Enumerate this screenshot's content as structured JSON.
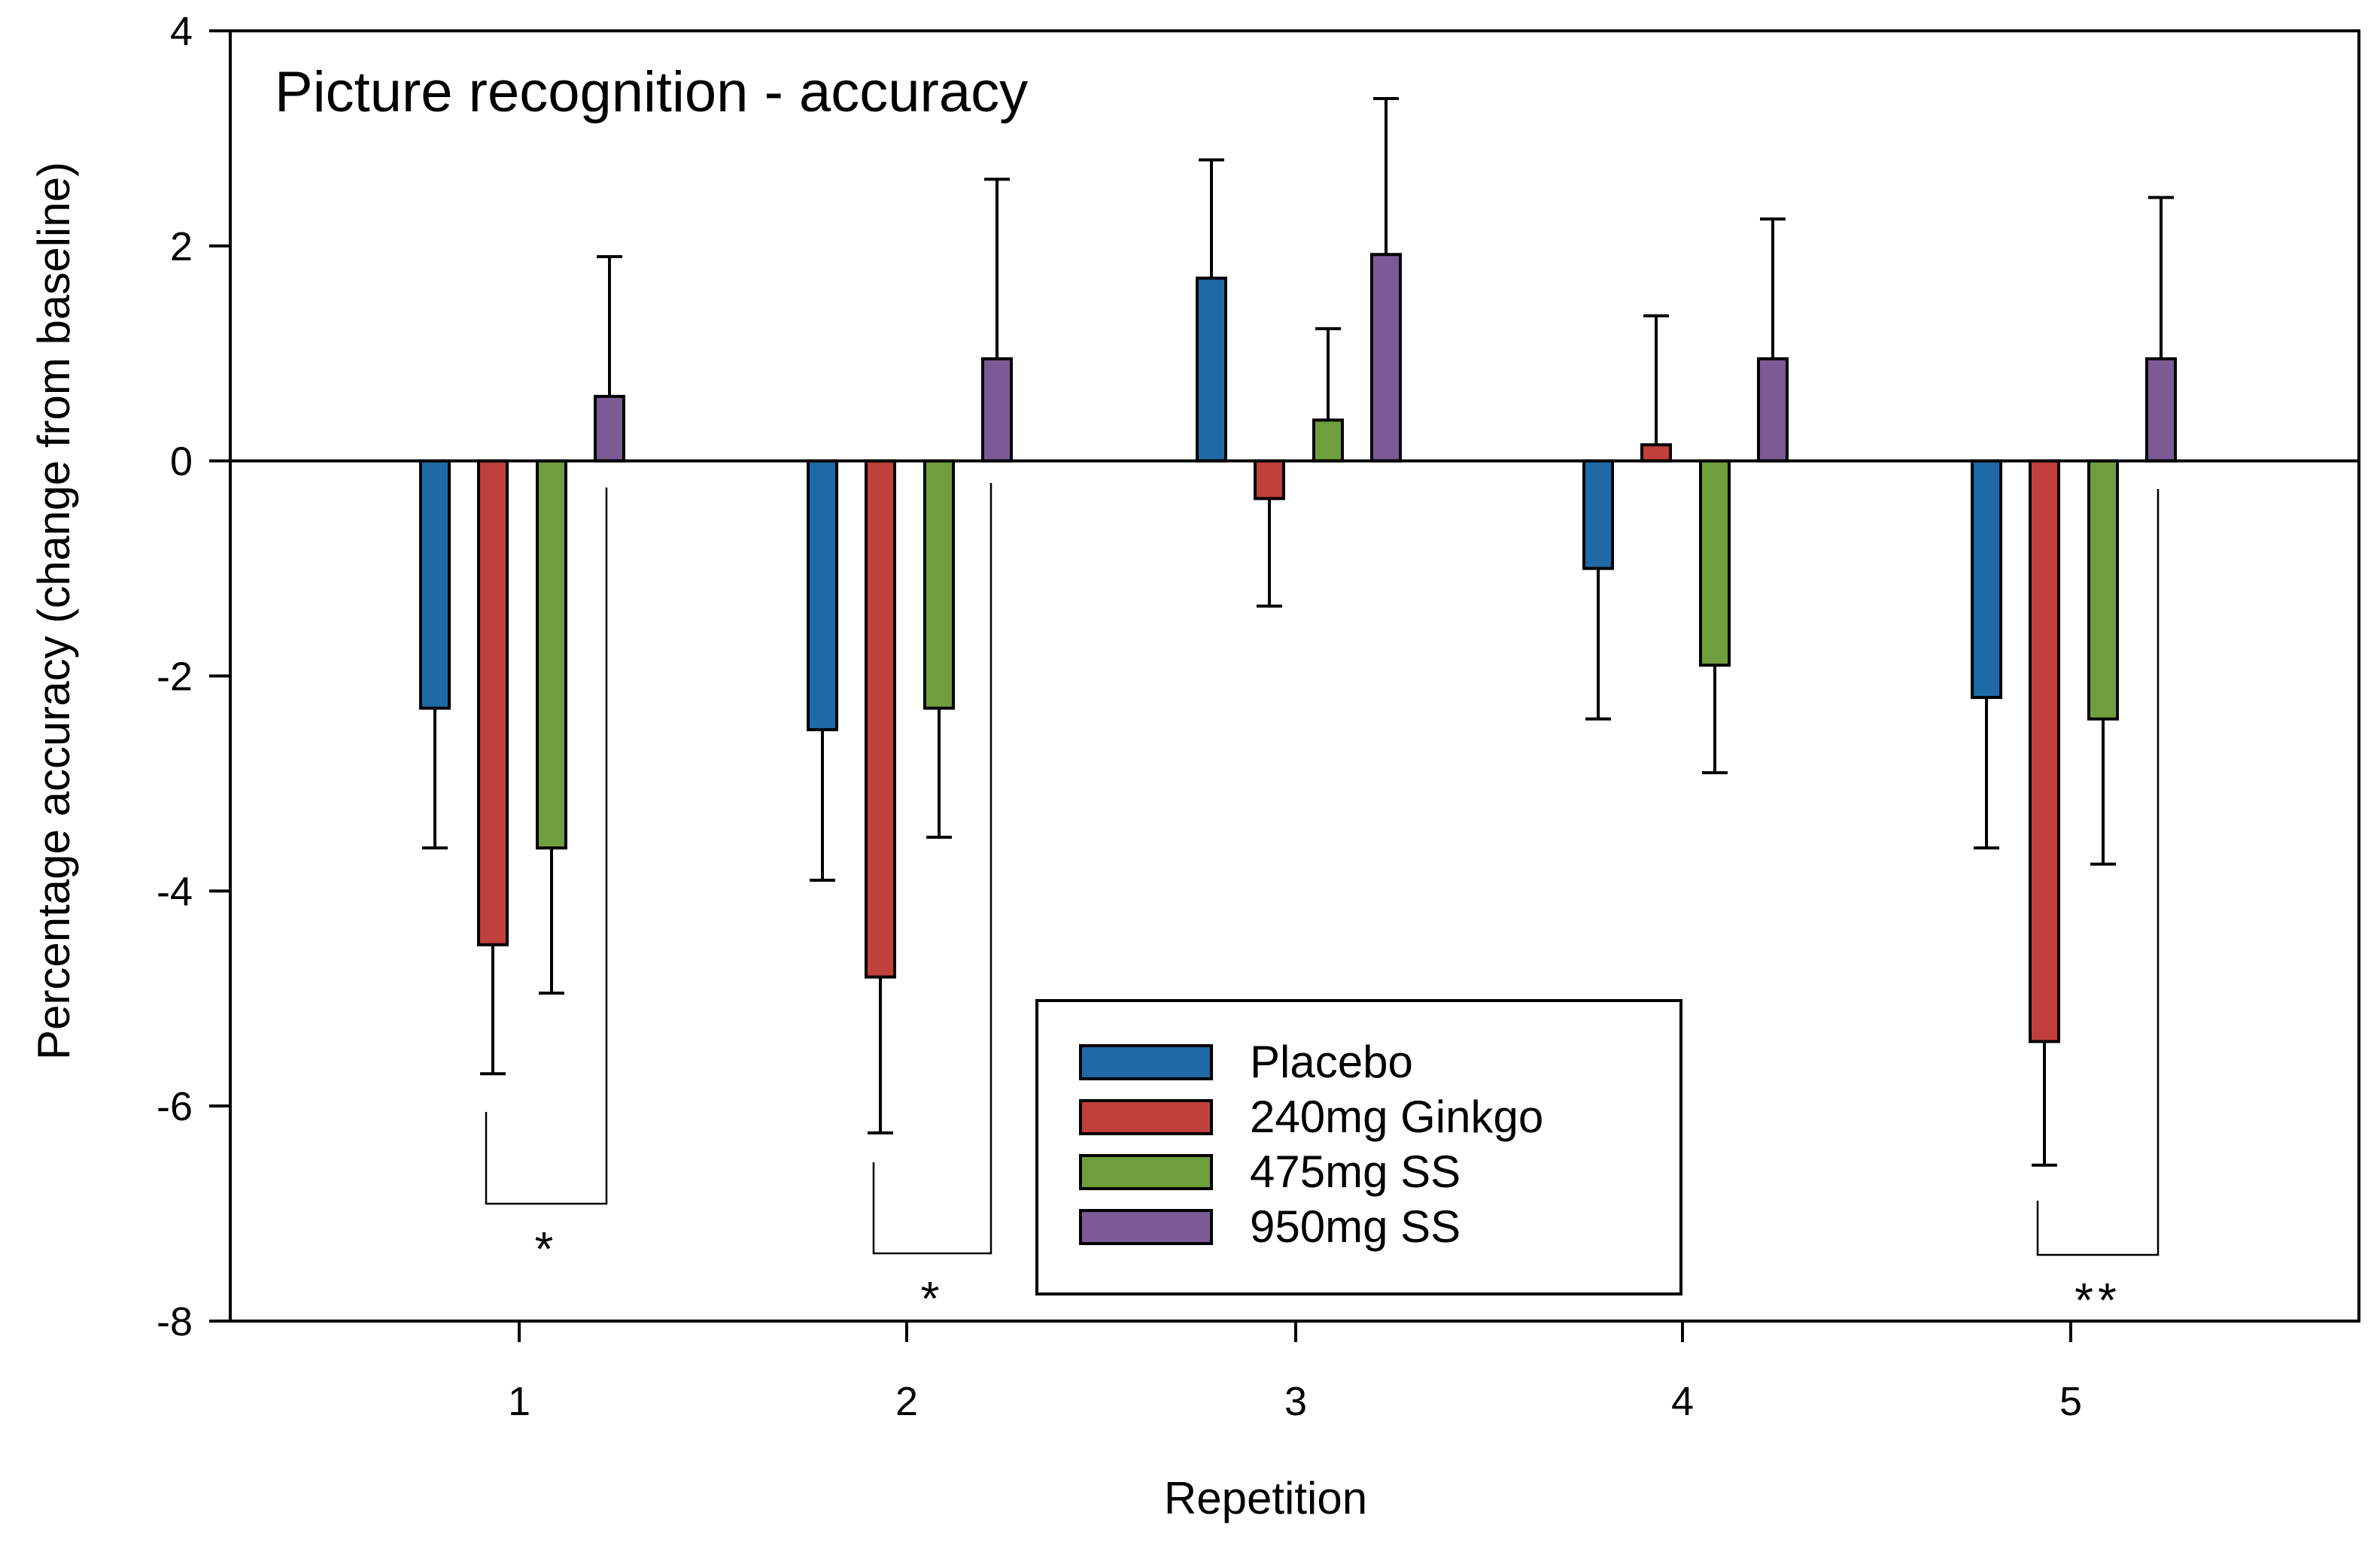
{
  "chart_data": {
    "type": "bar",
    "title": "Picture recognition - accuracy",
    "xlabel": "Repetition",
    "ylabel": "Percentage accuracy (change from baseline)",
    "ylim": [
      -8,
      4
    ],
    "yticks": [
      4,
      2,
      0,
      -2,
      -4,
      -6,
      -8
    ],
    "categories": [
      "1",
      "2",
      "3",
      "4",
      "5"
    ],
    "series": [
      {
        "name": "Placebo",
        "color": "#1f6aa5",
        "values": [
          -2.3,
          -2.5,
          1.7,
          -1.0,
          -2.2
        ],
        "errors": [
          1.3,
          1.4,
          1.1,
          1.4,
          1.4
        ]
      },
      {
        "name": "240mg Ginkgo",
        "color": "#c0403c",
        "values": [
          -4.5,
          -4.8,
          -0.35,
          0.15,
          -5.4
        ],
        "errors": [
          1.2,
          1.45,
          1.0,
          1.2,
          1.15
        ]
      },
      {
        "name": "475mg SS",
        "color": "#6f9e3c",
        "values": [
          -3.6,
          -2.3,
          0.38,
          -1.9,
          -2.4
        ],
        "errors": [
          1.35,
          1.2,
          0.85,
          1.0,
          1.35
        ]
      },
      {
        "name": "950mg SS",
        "color": "#7b5a96",
        "values": [
          0.6,
          0.95,
          1.92,
          0.95,
          0.95
        ],
        "errors": [
          1.3,
          1.67,
          1.45,
          1.3,
          1.5
        ]
      }
    ],
    "legend": {
      "position": "bottom-center"
    },
    "significance": [
      {
        "category": "1",
        "label": "*"
      },
      {
        "category": "2",
        "label": "*"
      },
      {
        "category": "5",
        "label": "**"
      }
    ]
  }
}
